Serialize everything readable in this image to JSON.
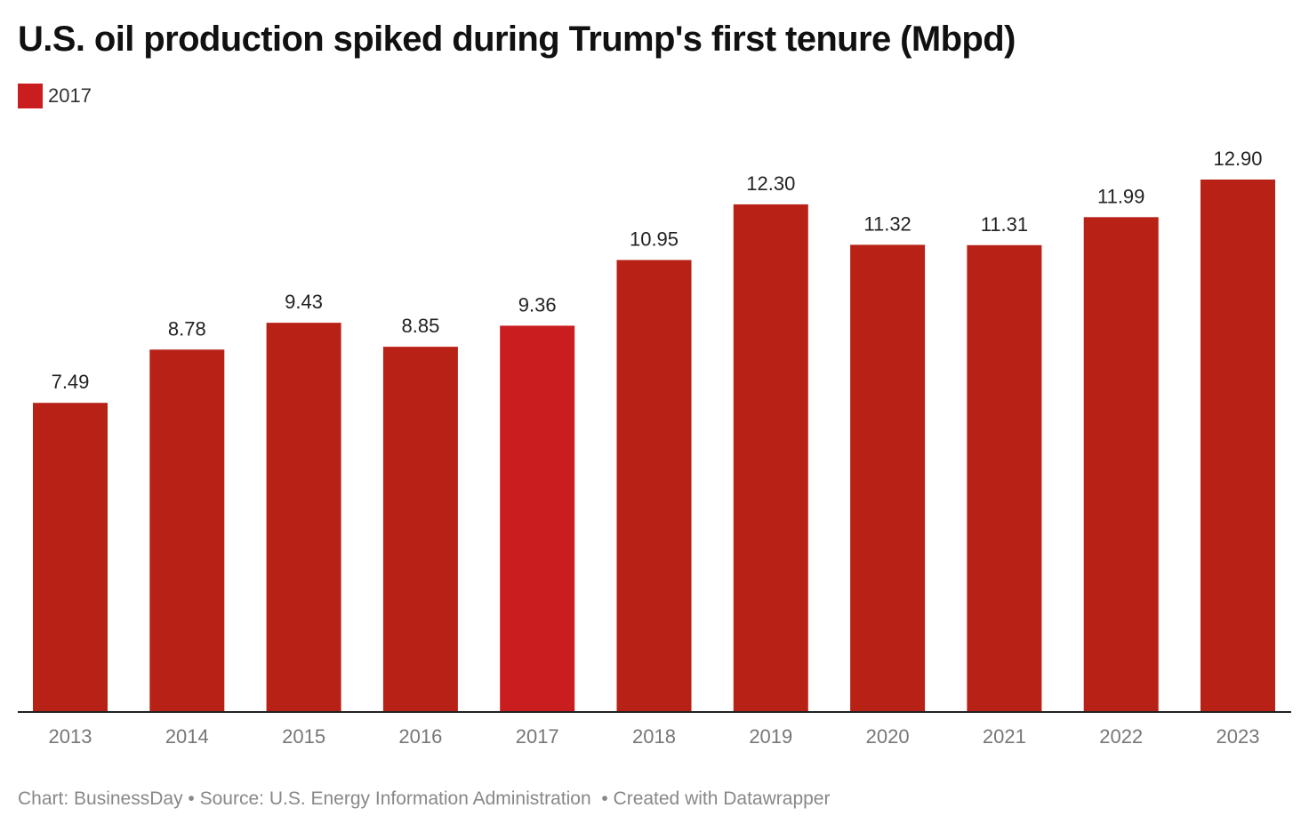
{
  "chart_data": {
    "type": "bar",
    "title": "U.S. oil production spiked during Trump's first tenure (Mbpd)",
    "categories": [
      "2013",
      "2014",
      "2015",
      "2016",
      "2017",
      "2018",
      "2019",
      "2020",
      "2021",
      "2022",
      "2023"
    ],
    "values": [
      7.49,
      8.78,
      9.43,
      8.85,
      9.36,
      10.95,
      12.3,
      11.32,
      11.31,
      11.99,
      12.9
    ],
    "value_labels": [
      "7.49",
      "8.78",
      "9.43",
      "8.85",
      "9.36",
      "10.95",
      "12.30",
      "11.32",
      "11.31",
      "11.99",
      "12.90"
    ],
    "highlight_category": "2017",
    "legend": [
      {
        "label": "2017",
        "color": "#C91D20"
      }
    ],
    "legend_position": "top-left",
    "xlabel": "",
    "ylabel": "",
    "ylim": [
      0,
      12.9
    ],
    "grid": false,
    "colors": {
      "default": "#B82216",
      "highlight": "#C91D20",
      "axis": "#222222"
    }
  },
  "footer": {
    "chart_by": "Chart: BusinessDay",
    "source": "Source: U.S. Energy Information Administration",
    "created": "Created with Datawrapper",
    "separator": " • "
  }
}
